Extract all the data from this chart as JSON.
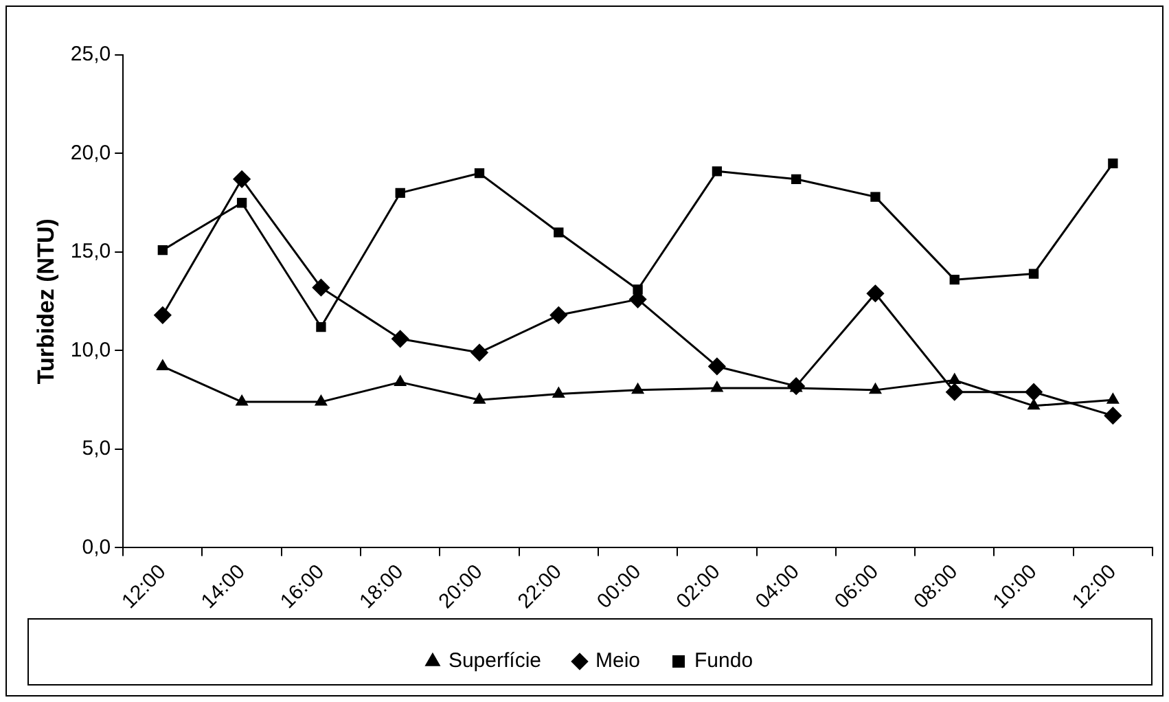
{
  "chart_data": {
    "type": "line",
    "ylabel": "Turbidez (NTU)",
    "categories": [
      "12:00",
      "14:00",
      "16:00",
      "18:00",
      "20:00",
      "22:00",
      "00:00",
      "02:00",
      "04:00",
      "06:00",
      "08:00",
      "10:00",
      "12:00"
    ],
    "series": [
      {
        "name": "Superfície",
        "color": "#000000",
        "marker": "triangle",
        "values": [
          9.2,
          7.4,
          7.4,
          8.4,
          7.5,
          7.8,
          8.0,
          8.1,
          8.1,
          8.0,
          8.5,
          7.2,
          7.5
        ]
      },
      {
        "name": "Meio",
        "color": "#000000",
        "marker": "diamond",
        "values": [
          11.8,
          18.7,
          13.2,
          10.6,
          9.9,
          11.8,
          12.6,
          9.2,
          8.2,
          12.9,
          7.9,
          7.9,
          6.7
        ]
      },
      {
        "name": "Fundo",
        "color": "#000000",
        "marker": "square",
        "values": [
          15.1,
          17.5,
          11.2,
          18.0,
          19.0,
          16.0,
          13.1,
          19.1,
          18.7,
          17.8,
          13.6,
          13.9,
          19.5
        ]
      }
    ],
    "ylim": [
      0,
      25
    ],
    "yticks": [
      {
        "value": 0,
        "label": "0,0"
      },
      {
        "value": 5,
        "label": "5,0"
      },
      {
        "value": 10,
        "label": "10,0"
      },
      {
        "value": 15,
        "label": "15,0"
      },
      {
        "value": 20,
        "label": "20,0"
      },
      {
        "value": 25,
        "label": "25,0"
      }
    ],
    "grid": false,
    "legend": "bottom",
    "line_style": "solid"
  }
}
